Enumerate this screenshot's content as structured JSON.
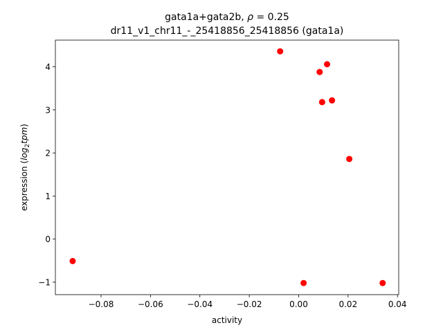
{
  "chart_data": {
    "type": "scatter",
    "title_line1_prefix": "gata1a+gata2b, ",
    "title_line1_rho": "ρ",
    "title_line1_suffix": " = 0.25",
    "title_line2": "dr11_v1_chr11_-_25418856_25418856 (gata1a)",
    "xlabel": "activity",
    "ylabel_prefix": "expression (",
    "ylabel_italic": "log",
    "ylabel_sub": "2",
    "ylabel_italic2": "tpm",
    "ylabel_suffix": ")",
    "xlim": [
      -0.0985,
      0.0405
    ],
    "ylim": [
      -1.29,
      4.62
    ],
    "xticks": [
      -0.08,
      -0.06,
      -0.04,
      -0.02,
      0.0,
      0.02,
      0.04
    ],
    "xtick_labels": [
      "−0.08",
      "−0.06",
      "−0.04",
      "−0.02",
      "0.00",
      "0.02",
      "0.04"
    ],
    "yticks": [
      -1,
      0,
      1,
      2,
      3,
      4
    ],
    "ytick_labels": [
      "−1",
      "0",
      "1",
      "2",
      "3",
      "4"
    ],
    "point_color": "#ff0000",
    "points": [
      {
        "x": -0.0075,
        "y": 4.36
      },
      {
        "x": 0.0115,
        "y": 4.06
      },
      {
        "x": 0.0085,
        "y": 3.88
      },
      {
        "x": 0.0135,
        "y": 3.22
      },
      {
        "x": 0.0095,
        "y": 3.18
      },
      {
        "x": 0.0205,
        "y": 1.86
      },
      {
        "x": -0.0915,
        "y": -0.51
      },
      {
        "x": 0.002,
        "y": -1.02
      },
      {
        "x": 0.034,
        "y": -1.02
      }
    ]
  }
}
